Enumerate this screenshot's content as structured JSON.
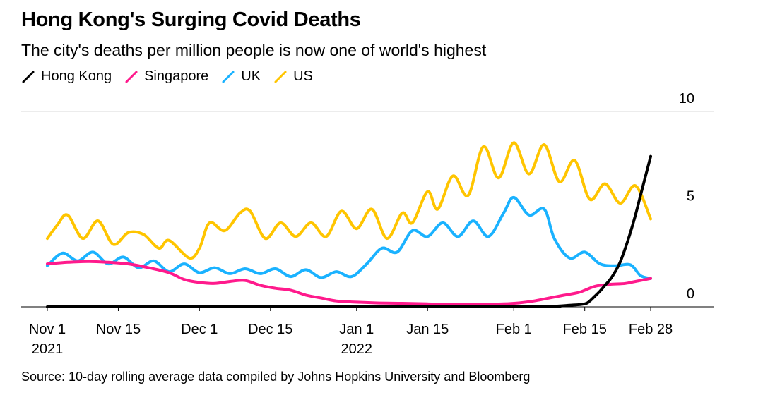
{
  "title": "Hong Kong's Surging Covid Deaths",
  "subtitle": "The city's deaths per million people is now one of world's highest",
  "source": "Source: 10-day rolling average data compiled by Johns Hopkins University and Bloomberg",
  "chart_data": {
    "type": "line",
    "title": "Hong Kong's Surging Covid Deaths",
    "subtitle": "The city's deaths per million people is now one of world's highest",
    "xlabel": "",
    "ylabel": "",
    "x_start": "2021-11-01",
    "x_end": "2022-02-28",
    "ylim": [
      0,
      10
    ],
    "y_ticks": [
      0,
      5,
      10
    ],
    "y_axis_side": "right",
    "grid": "horizontal",
    "legend_position": "top-left",
    "x_ticks": [
      {
        "date": "2021-11-01",
        "label": "Nov 1",
        "sublabel": "2021"
      },
      {
        "date": "2021-11-15",
        "label": "Nov 15",
        "sublabel": ""
      },
      {
        "date": "2021-12-01",
        "label": "Dec 1",
        "sublabel": ""
      },
      {
        "date": "2021-12-15",
        "label": "Dec 15",
        "sublabel": ""
      },
      {
        "date": "2022-01-01",
        "label": "Jan 1",
        "sublabel": "2022"
      },
      {
        "date": "2022-01-15",
        "label": "Jan 15",
        "sublabel": ""
      },
      {
        "date": "2022-02-01",
        "label": "Feb 1",
        "sublabel": ""
      },
      {
        "date": "2022-02-15",
        "label": "Feb 15",
        "sublabel": ""
      },
      {
        "date": "2022-02-28",
        "label": "Feb 28",
        "sublabel": ""
      }
    ],
    "series": [
      {
        "name": "Hong Kong",
        "color": "#000000",
        "points": [
          [
            "2021-11-01",
            0
          ],
          [
            "2022-02-01",
            0
          ],
          [
            "2022-02-08",
            0.02
          ],
          [
            "2022-02-12",
            0.08
          ],
          [
            "2022-02-15",
            0.15
          ],
          [
            "2022-02-16",
            0.3
          ],
          [
            "2022-02-17",
            0.55
          ],
          [
            "2022-02-18",
            0.8
          ],
          [
            "2022-02-19",
            1.1
          ],
          [
            "2022-02-20",
            1.4
          ],
          [
            "2022-02-21",
            1.8
          ],
          [
            "2022-02-22",
            2.3
          ],
          [
            "2022-02-23",
            3.0
          ],
          [
            "2022-02-24",
            3.8
          ],
          [
            "2022-02-25",
            4.7
          ],
          [
            "2022-02-26",
            5.7
          ],
          [
            "2022-02-27",
            6.7
          ],
          [
            "2022-02-28",
            7.7
          ]
        ]
      },
      {
        "name": "Singapore",
        "color": "#ff1a8c",
        "points": [
          [
            "2021-11-01",
            2.2
          ],
          [
            "2021-11-05",
            2.28
          ],
          [
            "2021-11-09",
            2.32
          ],
          [
            "2021-11-13",
            2.28
          ],
          [
            "2021-11-17",
            2.2
          ],
          [
            "2021-11-21",
            2.0
          ],
          [
            "2021-11-25",
            1.75
          ],
          [
            "2021-11-28",
            1.4
          ],
          [
            "2021-12-01",
            1.25
          ],
          [
            "2021-12-04",
            1.2
          ],
          [
            "2021-12-07",
            1.3
          ],
          [
            "2021-12-10",
            1.35
          ],
          [
            "2021-12-13",
            1.1
          ],
          [
            "2021-12-16",
            0.95
          ],
          [
            "2021-12-19",
            0.85
          ],
          [
            "2021-12-22",
            0.6
          ],
          [
            "2021-12-25",
            0.45
          ],
          [
            "2021-12-28",
            0.3
          ],
          [
            "2021-12-31",
            0.25
          ],
          [
            "2022-01-05",
            0.2
          ],
          [
            "2022-01-10",
            0.18
          ],
          [
            "2022-01-15",
            0.15
          ],
          [
            "2022-01-20",
            0.12
          ],
          [
            "2022-01-25",
            0.12
          ],
          [
            "2022-01-30",
            0.15
          ],
          [
            "2022-02-02",
            0.2
          ],
          [
            "2022-02-05",
            0.3
          ],
          [
            "2022-02-08",
            0.45
          ],
          [
            "2022-02-11",
            0.6
          ],
          [
            "2022-02-14",
            0.75
          ],
          [
            "2022-02-17",
            1.05
          ],
          [
            "2022-02-20",
            1.15
          ],
          [
            "2022-02-23",
            1.2
          ],
          [
            "2022-02-25",
            1.3
          ],
          [
            "2022-02-28",
            1.45
          ]
        ]
      },
      {
        "name": "UK",
        "color": "#1ab2ff",
        "points": [
          [
            "2021-11-01",
            2.1
          ],
          [
            "2021-11-04",
            2.75
          ],
          [
            "2021-11-07",
            2.35
          ],
          [
            "2021-11-10",
            2.8
          ],
          [
            "2021-11-13",
            2.2
          ],
          [
            "2021-11-16",
            2.55
          ],
          [
            "2021-11-19",
            2.0
          ],
          [
            "2021-11-22",
            2.35
          ],
          [
            "2021-11-25",
            1.8
          ],
          [
            "2021-11-28",
            2.2
          ],
          [
            "2021-12-01",
            1.75
          ],
          [
            "2021-12-04",
            2.0
          ],
          [
            "2021-12-07",
            1.7
          ],
          [
            "2021-12-10",
            1.95
          ],
          [
            "2021-12-13",
            1.7
          ],
          [
            "2021-12-16",
            1.95
          ],
          [
            "2021-12-19",
            1.55
          ],
          [
            "2021-12-22",
            1.9
          ],
          [
            "2021-12-25",
            1.5
          ],
          [
            "2021-12-28",
            1.8
          ],
          [
            "2021-12-31",
            1.55
          ],
          [
            "2022-01-03",
            2.2
          ],
          [
            "2022-01-06",
            3.0
          ],
          [
            "2022-01-09",
            2.8
          ],
          [
            "2022-01-12",
            3.9
          ],
          [
            "2022-01-15",
            3.6
          ],
          [
            "2022-01-18",
            4.3
          ],
          [
            "2022-01-21",
            3.6
          ],
          [
            "2022-01-24",
            4.4
          ],
          [
            "2022-01-27",
            3.6
          ],
          [
            "2022-01-30",
            4.8
          ],
          [
            "2022-02-01",
            5.6
          ],
          [
            "2022-02-04",
            4.7
          ],
          [
            "2022-02-07",
            5.0
          ],
          [
            "2022-02-09",
            3.5
          ],
          [
            "2022-02-12",
            2.5
          ],
          [
            "2022-02-15",
            2.8
          ],
          [
            "2022-02-18",
            2.2
          ],
          [
            "2022-02-21",
            2.1
          ],
          [
            "2022-02-24",
            2.15
          ],
          [
            "2022-02-26",
            1.6
          ],
          [
            "2022-02-28",
            1.45
          ]
        ]
      },
      {
        "name": "US",
        "color": "#ffc500",
        "points": [
          [
            "2021-11-01",
            3.5
          ],
          [
            "2021-11-03",
            4.2
          ],
          [
            "2021-11-05",
            4.7
          ],
          [
            "2021-11-08",
            3.5
          ],
          [
            "2021-11-11",
            4.4
          ],
          [
            "2021-11-14",
            3.2
          ],
          [
            "2021-11-17",
            3.8
          ],
          [
            "2021-11-20",
            3.7
          ],
          [
            "2021-11-23",
            3.0
          ],
          [
            "2021-11-25",
            3.4
          ],
          [
            "2021-11-29",
            2.5
          ],
          [
            "2021-12-01",
            3.0
          ],
          [
            "2021-12-03",
            4.3
          ],
          [
            "2021-12-06",
            3.9
          ],
          [
            "2021-12-09",
            4.8
          ],
          [
            "2021-12-11",
            4.9
          ],
          [
            "2021-12-14",
            3.5
          ],
          [
            "2021-12-17",
            4.3
          ],
          [
            "2021-12-20",
            3.6
          ],
          [
            "2021-12-23",
            4.3
          ],
          [
            "2021-12-26",
            3.6
          ],
          [
            "2021-12-29",
            4.9
          ],
          [
            "2022-01-01",
            4.0
          ],
          [
            "2022-01-04",
            5.0
          ],
          [
            "2022-01-07",
            3.5
          ],
          [
            "2022-01-10",
            4.8
          ],
          [
            "2022-01-12",
            4.3
          ],
          [
            "2022-01-15",
            5.9
          ],
          [
            "2022-01-17",
            5.0
          ],
          [
            "2022-01-20",
            6.7
          ],
          [
            "2022-01-23",
            5.7
          ],
          [
            "2022-01-26",
            8.2
          ],
          [
            "2022-01-29",
            6.6
          ],
          [
            "2022-02-01",
            8.4
          ],
          [
            "2022-02-04",
            6.8
          ],
          [
            "2022-02-07",
            8.3
          ],
          [
            "2022-02-10",
            6.4
          ],
          [
            "2022-02-13",
            7.5
          ],
          [
            "2022-02-16",
            5.5
          ],
          [
            "2022-02-19",
            6.3
          ],
          [
            "2022-02-22",
            5.3
          ],
          [
            "2022-02-25",
            6.2
          ],
          [
            "2022-02-28",
            4.5
          ]
        ]
      }
    ]
  }
}
